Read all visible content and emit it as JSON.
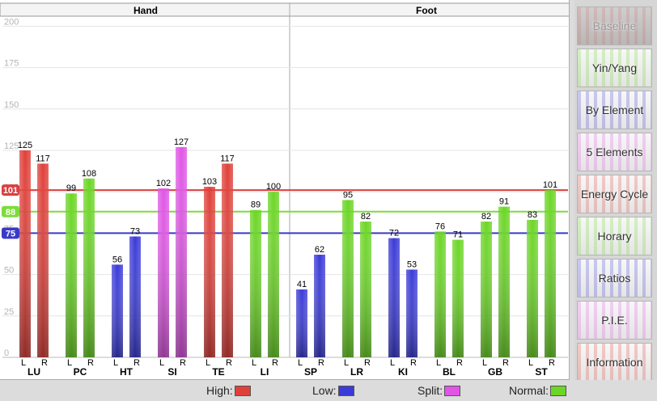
{
  "groups": [
    {
      "label": "Hand"
    },
    {
      "label": "Foot"
    }
  ],
  "colors": {
    "high": "#e0403a",
    "low": "#3a3ad8",
    "split": "#e055e6",
    "normal": "#6cd626"
  },
  "reference_lines": [
    {
      "label": "101",
      "value": 101,
      "color": "#d94040"
    },
    {
      "label": "88",
      "value": 88,
      "color": "#7ddc3a"
    },
    {
      "label": "75",
      "value": 75,
      "color": "#3a3ac8"
    }
  ],
  "sidebar": {
    "buttons": [
      {
        "label": "Baseline",
        "active": true
      },
      {
        "label": "Yin/Yang",
        "active": false
      },
      {
        "label": "By Element",
        "active": false
      },
      {
        "label": "5 Elements",
        "active": false
      },
      {
        "label": "Energy Cycle",
        "active": false
      },
      {
        "label": "Horary",
        "active": false
      },
      {
        "label": "Ratios",
        "active": false
      },
      {
        "label": "P.I.E.",
        "active": false
      },
      {
        "label": "Information",
        "active": false
      }
    ]
  },
  "legend": {
    "high": "High:",
    "low": "Low:",
    "split": "Split:",
    "normal": "Normal:"
  },
  "chart_data": {
    "type": "bar",
    "ylim": [
      0,
      200
    ],
    "yticks": [
      0,
      25,
      50,
      75,
      100,
      125,
      150,
      175,
      200
    ],
    "side_labels": [
      "L",
      "R"
    ],
    "categories": [
      "LU",
      "PC",
      "HT",
      "SI",
      "TE",
      "LI",
      "SP",
      "LR",
      "KI",
      "BL",
      "GB",
      "ST"
    ],
    "category_group": [
      "Hand",
      "Hand",
      "Hand",
      "Hand",
      "Hand",
      "Hand",
      "Foot",
      "Foot",
      "Foot",
      "Foot",
      "Foot",
      "Foot"
    ],
    "series": [
      {
        "name": "L",
        "values": [
          125,
          99,
          56,
          102,
          103,
          89,
          41,
          95,
          72,
          76,
          82,
          83
        ]
      },
      {
        "name": "R",
        "values": [
          117,
          108,
          73,
          127,
          117,
          100,
          62,
          82,
          53,
          71,
          91,
          101
        ]
      }
    ],
    "bar_status": [
      [
        "high",
        "high"
      ],
      [
        "normal",
        "normal"
      ],
      [
        "low",
        "low"
      ],
      [
        "split",
        "split"
      ],
      [
        "high",
        "high"
      ],
      [
        "normal",
        "normal"
      ],
      [
        "low",
        "low"
      ],
      [
        "normal",
        "normal"
      ],
      [
        "low",
        "low"
      ],
      [
        "normal",
        "normal"
      ],
      [
        "normal",
        "normal"
      ],
      [
        "normal",
        "normal"
      ]
    ]
  }
}
